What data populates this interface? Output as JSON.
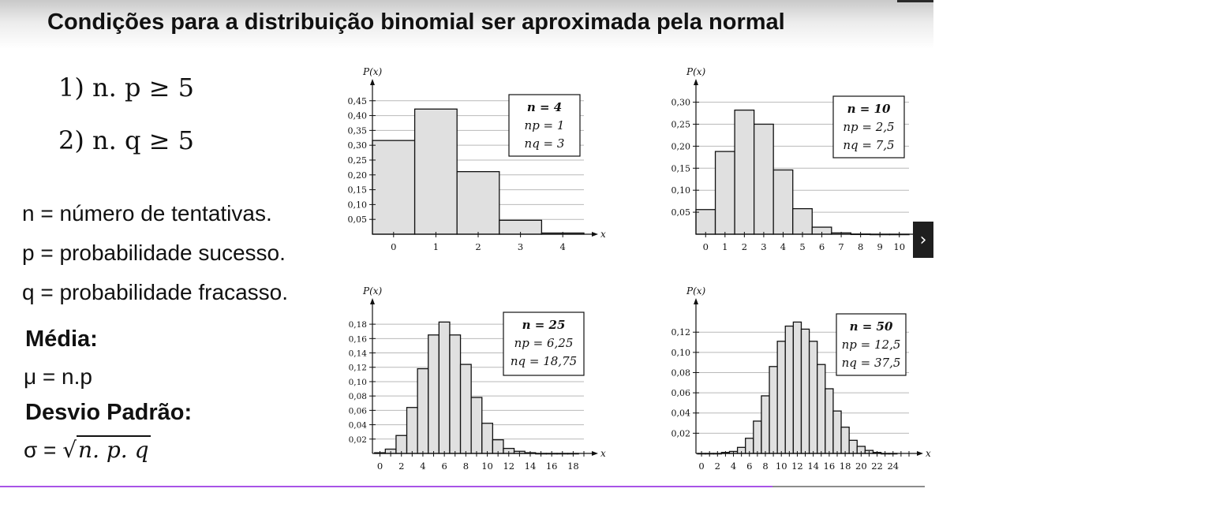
{
  "slide": {
    "title": "Condições para a distribuição binomial ser aproximada pela normal",
    "conditions": [
      "1) n. p ≥ 5",
      "2) n. q ≥ 5"
    ],
    "definitions": [
      "n = número de tentativas.",
      "p = probabilidade sucesso.",
      "q = probabilidade fracasso."
    ],
    "mean_heading": "Média:",
    "mean_formula": "μ = n.p",
    "sd_heading": "Desvio Padrão:",
    "sd_formula_prefix": "σ = ",
    "sd_formula_radical": "√",
    "sd_formula_radicand": "n. p. q"
  },
  "player": {
    "next_icon_glyph": "›",
    "progress_fraction": 0.835,
    "progress_color": "#a853e6",
    "track_color": "#8c8c8c"
  },
  "chart_data": [
    {
      "type": "bar",
      "ylabel": "P(x)",
      "xlabel": "x",
      "x": [
        0,
        1,
        2,
        3,
        4
      ],
      "values": [
        0.316,
        0.422,
        0.211,
        0.047,
        0.004
      ],
      "yticks": [
        0.05,
        0.1,
        0.15,
        0.2,
        0.25,
        0.3,
        0.35,
        0.4,
        0.45
      ],
      "ytick_labels": [
        "0,05",
        "0,10",
        "0,15",
        "0,20",
        "0,25",
        "0,30",
        "0,35",
        "0,40",
        "0,45"
      ],
      "xticks": [
        0,
        1,
        2,
        3,
        4
      ],
      "xtick_labels": [
        "0",
        "1",
        "2",
        "3",
        "4"
      ],
      "ylim": [
        0,
        0.46
      ],
      "xlim": [
        -0.5,
        4.5
      ],
      "grid": true,
      "legend": {
        "lines": [
          "n = 4",
          "np = 1",
          "nq = 3"
        ],
        "placement": "top-right"
      },
      "bar_fill": "#e0e0e0"
    },
    {
      "type": "bar",
      "ylabel": "P(x)",
      "xlabel": "x",
      "x": [
        0,
        1,
        2,
        3,
        4,
        5,
        6,
        7,
        8,
        9,
        10
      ],
      "values": [
        0.056,
        0.188,
        0.282,
        0.25,
        0.146,
        0.058,
        0.016,
        0.003,
        0.0004,
        0.0,
        0.0
      ],
      "yticks": [
        0.05,
        0.1,
        0.15,
        0.2,
        0.25,
        0.3
      ],
      "ytick_labels": [
        "0,05",
        "0,10",
        "0,15",
        "0,20",
        "0,25",
        "0,30"
      ],
      "xticks": [
        0,
        1,
        2,
        3,
        4,
        5,
        6,
        7,
        8,
        9,
        10
      ],
      "xtick_labels": [
        "0",
        "1",
        "2",
        "3",
        "4",
        "5",
        "6",
        "7",
        "8",
        "9",
        "10"
      ],
      "ylim": [
        0,
        0.31
      ],
      "xlim": [
        -0.5,
        10.5
      ],
      "grid": true,
      "legend": {
        "lines": [
          "n = 10",
          "np = 2,5",
          "nq = 7,5"
        ],
        "placement": "top-right"
      },
      "bar_fill": "#e0e0e0"
    },
    {
      "type": "bar",
      "ylabel": "P(x)",
      "xlabel": "x",
      "x": [
        0,
        1,
        2,
        3,
        4,
        5,
        6,
        7,
        8,
        9,
        10,
        11,
        12,
        13,
        14,
        15,
        16,
        17,
        18
      ],
      "values": [
        0.001,
        0.006,
        0.025,
        0.064,
        0.118,
        0.165,
        0.183,
        0.165,
        0.124,
        0.078,
        0.042,
        0.019,
        0.007,
        0.003,
        0.001,
        0.0,
        0.0,
        0.0,
        0.0
      ],
      "yticks": [
        0.02,
        0.04,
        0.06,
        0.08,
        0.1,
        0.12,
        0.14,
        0.16,
        0.18
      ],
      "ytick_labels": [
        "0,02",
        "0,04",
        "0,06",
        "0,08",
        "0,10",
        "0,12",
        "0,14",
        "0,16",
        "0,18"
      ],
      "xticks": [
        0,
        2,
        4,
        6,
        8,
        10,
        12,
        14,
        16,
        18
      ],
      "xtick_labels": [
        "0",
        "2",
        "4",
        "6",
        "8",
        "10",
        "12",
        "14",
        "16",
        "18"
      ],
      "ylim": [
        0,
        0.19
      ],
      "xlim": [
        -0.7,
        19
      ],
      "grid": true,
      "legend": {
        "lines": [
          "n = 25",
          "np = 6,25",
          "nq = 18,75"
        ],
        "placement": "top-right"
      },
      "bar_fill": "#e0e0e0"
    },
    {
      "type": "bar",
      "ylabel": "P(x)",
      "xlabel": "x",
      "x": [
        0,
        1,
        2,
        3,
        4,
        5,
        6,
        7,
        8,
        9,
        10,
        11,
        12,
        13,
        14,
        15,
        16,
        17,
        18,
        19,
        20,
        21,
        22,
        23,
        24
      ],
      "values": [
        0.0,
        0.0,
        0.0,
        0.001,
        0.002,
        0.006,
        0.015,
        0.032,
        0.057,
        0.086,
        0.111,
        0.126,
        0.13,
        0.123,
        0.111,
        0.088,
        0.064,
        0.042,
        0.026,
        0.013,
        0.007,
        0.003,
        0.001,
        0.0,
        0.0
      ],
      "yticks": [
        0.02,
        0.04,
        0.06,
        0.08,
        0.1,
        0.12
      ],
      "ytick_labels": [
        "0,02",
        "0,04",
        "0,06",
        "0,08",
        "0,10",
        "0,12"
      ],
      "xticks": [
        0,
        2,
        4,
        6,
        8,
        10,
        12,
        14,
        16,
        18,
        20,
        22,
        24
      ],
      "xtick_labels": [
        "0",
        "2",
        "4",
        "6",
        "8",
        "10",
        "12",
        "14",
        "16",
        "18",
        "20",
        "22",
        "24"
      ],
      "ylim": [
        0,
        0.135
      ],
      "xlim": [
        -0.7,
        26
      ],
      "grid": true,
      "legend": {
        "lines": [
          "n = 50",
          "np = 12,5",
          "nq = 37,5"
        ],
        "placement": "top-right"
      },
      "bar_fill": "#e0e0e0"
    }
  ]
}
